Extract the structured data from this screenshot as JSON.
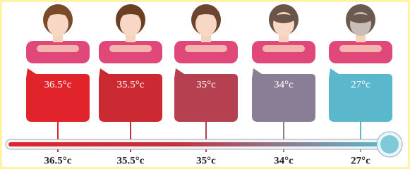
{
  "items": [
    {
      "box_label": "36.5°c",
      "scale_label": "36.5°c",
      "color": "#e1232b"
    },
    {
      "box_label": "35.5°c",
      "scale_label": "35.5°c",
      "color": "#cc2a32"
    },
    {
      "box_label": "35°c",
      "scale_label": "35°c",
      "color": "#b5404f"
    },
    {
      "box_label": "34°c",
      "scale_label": "34°c",
      "color": "#8a7e96"
    },
    {
      "box_label": "27°c",
      "scale_label": "27°c",
      "color": "#5bb7cb"
    }
  ]
}
